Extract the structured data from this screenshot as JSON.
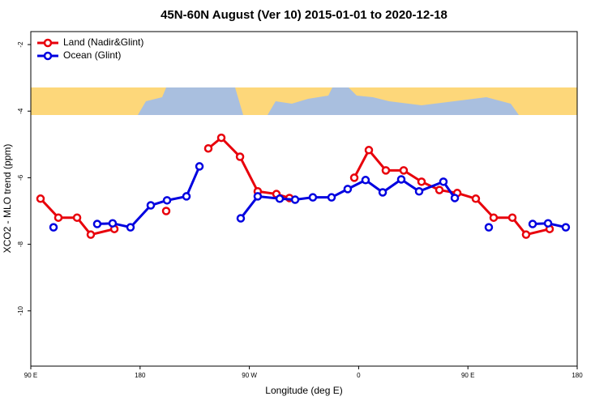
{
  "chart_data": {
    "type": "line",
    "title": "45N-60N August (Ver 10)   2015-01-01 to 2020-12-18",
    "x_label": "Longitude (deg E)",
    "y_label": "XCO2 - MLO trend (ppm)",
    "xlim": [
      90,
      540
    ],
    "xticks": [
      {
        "value": 90,
        "label": "90 E"
      },
      180,
      {
        "value": 270,
        "label": "90 W"
      },
      {
        "value": 360,
        "label": "0"
      },
      {
        "value": 450,
        "label": "90 E"
      },
      {
        "value": 540,
        "label": "180"
      }
    ],
    "ylim": [
      -11.66,
      -1.61
    ],
    "yticks": [
      -2,
      -4,
      -6,
      -8,
      -10
    ],
    "legend": "top-left",
    "series": [
      {
        "name": "Land (Nadir&Glint)",
        "color": "#e8000b",
        "x": [
          98.0,
          112.7,
          128.1,
          139.4,
          158.8,
          201.5,
          236.2,
          246.9,
          262.3,
          276.9,
          292.3,
          303.0,
          356.4,
          368.4,
          382.4,
          397.1,
          411.8,
          426.5,
          441.2,
          456.5,
          471.2,
          486.6,
          497.9,
          517.3
        ],
        "values": [
          -6.63,
          -7.2,
          -7.2,
          -7.71,
          -7.54,
          -7.0,
          -5.12,
          -4.8,
          -5.37,
          -6.41,
          -6.49,
          -6.61,
          -6.0,
          -5.17,
          -5.78,
          -5.78,
          -6.12,
          -6.37,
          -6.46,
          -6.63,
          -7.2,
          -7.2,
          -7.71,
          -7.54
        ],
        "segments": [
          [
            0,
            4
          ],
          [
            5,
            5
          ],
          [
            6,
            11
          ],
          [
            12,
            23
          ]
        ]
      },
      {
        "name": "Ocean (Glint)",
        "color": "#0000e0",
        "x": [
          108.7,
          144.7,
          157.4,
          172.1,
          188.8,
          202.2,
          218.2,
          228.9,
          262.9,
          276.9,
          295.0,
          307.7,
          322.3,
          337.7,
          351.0,
          365.7,
          379.8,
          395.1,
          409.8,
          429.8,
          439.2,
          467.2,
          503.3,
          516.0,
          530.6
        ],
        "values": [
          -7.49,
          -7.39,
          -7.37,
          -7.49,
          -6.83,
          -6.68,
          -6.56,
          -5.66,
          -7.22,
          -6.56,
          -6.63,
          -6.66,
          -6.59,
          -6.59,
          -6.34,
          -6.07,
          -6.44,
          -6.05,
          -6.41,
          -6.12,
          -6.61,
          -7.49,
          -7.39,
          -7.37,
          -7.49
        ],
        "segments": [
          [
            0,
            0
          ],
          [
            1,
            7
          ],
          [
            8,
            20
          ],
          [
            21,
            21
          ],
          [
            22,
            24
          ]
        ]
      }
    ]
  }
}
